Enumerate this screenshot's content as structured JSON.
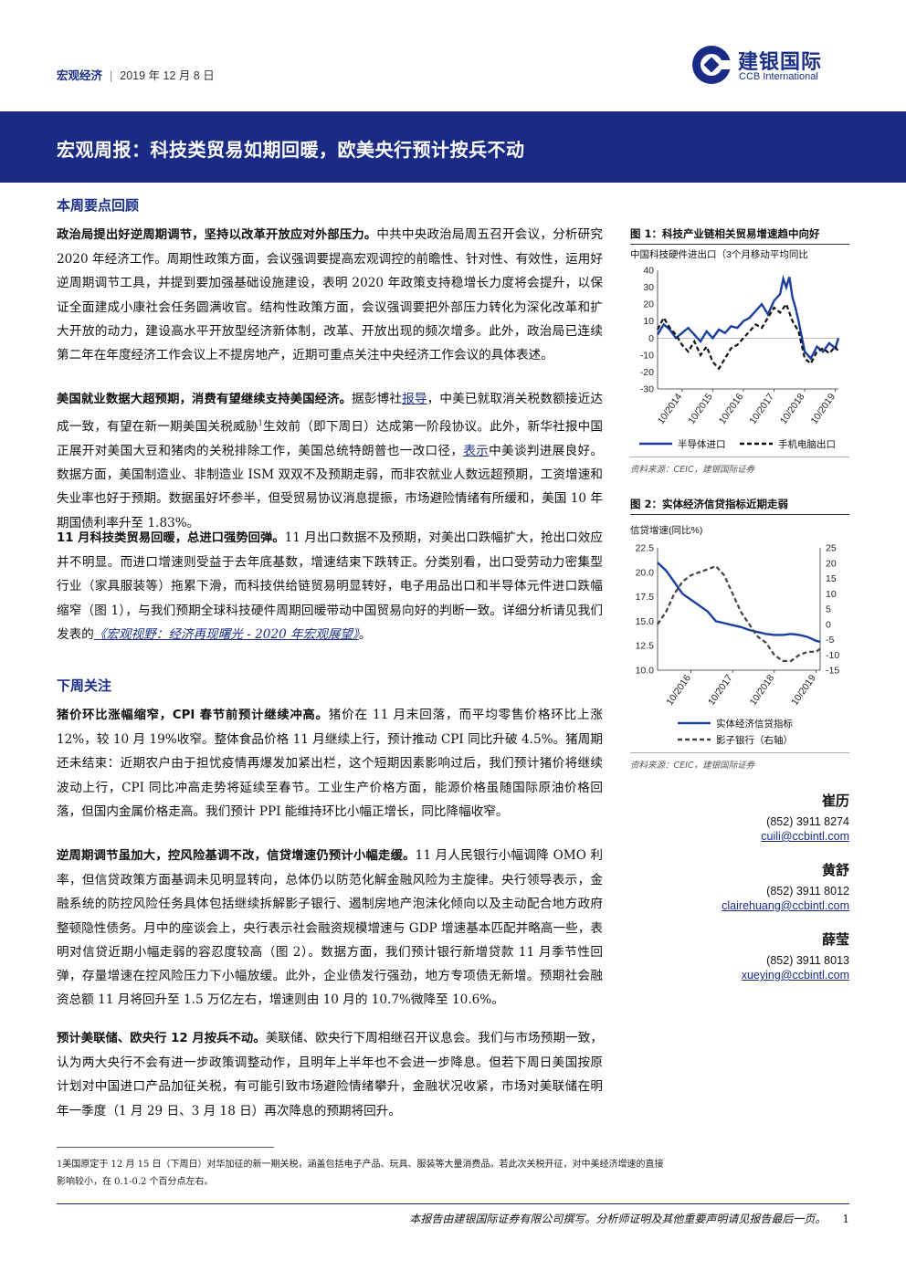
{
  "header": {
    "section": "宏观经济",
    "separator": "|",
    "date": "2019 年 12 月 8 日",
    "logo_cn": "建银国际",
    "logo_en": "CCB International",
    "brand_color": "#1a2b86"
  },
  "title": "宏观周报：科技类贸易如期回暖，欧美央行预计按兵不动",
  "sections": {
    "review_heading": "本周要点回顾",
    "next_heading": "下周关注"
  },
  "paragraphs": {
    "p1": {
      "lead": "政治局提出好逆周期调节，坚持以改革开放应对外部压力。",
      "text": "中共中央政治局周五召开会议，分析研究 2020 年经济工作。周期性政策方面，会议强调要提高宏观调控的前瞻性、针对性、有效性，运用好逆周期调节工具，并提到要加强基础设施建设，表明 2020 年政策支持稳增长力度将会提升，以保证全面建成小康社会任务圆满收官。结构性政策方面，会议强调要把外部压力转化为深化改革和扩大开放的动力，建设高水平开放型经济新体制，改革、开放出现的频次增多。此外，政治局已连续第二年在年度经济工作会议上不提房地产，近期可重点关注中央经济工作会议的具体表述。"
    },
    "p2": {
      "lead": "美国就业数据大超预期，消费有望继续支持美国经济。",
      "t1": "据彭博社",
      "link1": "报导",
      "t2": "，中美已就取消关税数额接近达成一致，",
      "t3": "有望在新一期美国关税威胁",
      "sup": "1",
      "t4": "生效前（即下周日）达成第一阶段协议。此外，新华社报中国正展开对美国大豆和猪肉的关税排除工作，美国总统特朗普也一改口径，",
      "link2": "表示",
      "t5": "中美谈判进展良好。数据方面，美国制造业、非制造业 ISM 双双不及预期走弱，而非农就业人数远超预期，工资增速和失业率也好于预期。数据虽好坏参半，但受贸易协议消息提振，市场避险情绪有所缓和，美国 10 年期国债利率升至 1.83%。"
    },
    "p3": {
      "lead": "11 月科技类贸易回暖，总进口强势回弹。",
      "t1": "11 月出口数据不及预期，对美出口跌幅扩大，抢出口效应并不明显。而进口增速则受益于去年底基数，增速结束下跌转正。分类别看，出口受劳动力密集型行业（家具服装等）拖累下滑，而科技供给链贸易明显转好，电子用品出口和半导体元件进口跌幅缩窄（图 1），与我们预期全球科技硬件周期回暖带动中国贸易向好的判断一致。详细分析请见我们发表的",
      "link": "《宏观视野：经济再现曙光 - 2020 年宏观展望》",
      "t2": "。"
    },
    "p4": {
      "lead": "猪价环比涨幅缩窄，CPI 春节前预计继续冲高。",
      "text": "猪价在 11 月末回落，而平均零售价格环比上涨 12%，较 10 月 19%收窄。整体食品价格 11 月继续上行，预计推动 CPI 同比升破 4.5%。猪周期还未结束：近期农户由于担忧疫情再爆发加紧出栏，这个短期因素影响过后，我们预计猪价将继续波动上行，CPI 同比冲高走势将延续至春节。工业生产价格方面，能源价格虽随国际原油价格回落，但国内金属价格走高。我们预计 PPI 能维持环比小幅正增长，同比降幅收窄。"
    },
    "p5": {
      "lead": "逆周期调节虽加大，控风险基调不改，信贷增速仍预计小幅走缓。",
      "text": "11 月人民银行小幅调降 OMO 利率，但信贷政策方面基调未见明显转向，总体仍以防范化解金融风险为主旋律。央行领导表示，金融系统的防控风险任务具体包括继续拆解影子银行、遏制房地产泡沫化倾向以及主动配合地方政府整顿隐性债务。月中的座谈会上，央行表示社会融资规模增速与 GDP 增速基本匹配并略高一些，表明对信贷近期小幅走弱的容忍度较高（图 2）。数据方面，我们预计银行新增贷款 11 月季节性回弹，存量增速在控风险压力下小幅放缓。此外，企业债发行强劲，地方专项债无新增。预期社会融资总额 11 月将回升至 1.5 万亿左右，增速则由 10 月的 10.7%微降至 10.6%。"
    },
    "p6": {
      "lead": "预计美联储、欧央行 12 月按兵不动。",
      "text": "美联储、欧央行下周相继召开议息会。我们与市场预期一致，认为两大央行不会有进一步政策调整动作，且明年上半年也不会进一步降息。但若下周日美国按原计划对中国进口产品加征关税，有可能引致市场避险情绪攀升，金融状况收紧，市场对美联储在明年一季度（1 月 29 日、3 月 18 日）再次降息的预期将回升。"
    }
  },
  "figures": {
    "fig1_caption": "图 1：科技产业链相关贸易增速趋中向好",
    "fig1_source": "资料来源：CEIC，建银国际证券",
    "fig2_caption": "图 2：实体经济信贷指标近期走弱",
    "fig2_source": "资料来源：CEIC，建银国际证券"
  },
  "chart_data": [
    {
      "type": "line",
      "title": "中国科技硬件进出口（3个月移动平均同比",
      "ylim": [
        -30,
        40
      ],
      "yticks": [
        40,
        30,
        20,
        10,
        0,
        -10,
        -20,
        -30
      ],
      "xticks": [
        "10/2014",
        "10/2015",
        "10/2016",
        "10/2017",
        "10/2018",
        "10/2019"
      ],
      "grid": false,
      "legend": "bottom",
      "series": [
        {
          "name": "半导体进口",
          "style": "solid",
          "color": "#1a3fa0",
          "x": [
            2014.0,
            2014.2,
            2014.4,
            2014.6,
            2014.8,
            2015.0,
            2015.2,
            2015.4,
            2015.6,
            2015.8,
            2016.0,
            2016.2,
            2016.4,
            2016.6,
            2016.8,
            2017.0,
            2017.2,
            2017.4,
            2017.6,
            2017.8,
            2018.0,
            2018.1,
            2018.2,
            2018.3,
            2018.4,
            2018.5,
            2018.6,
            2018.8,
            2019.0,
            2019.2,
            2019.4,
            2019.6,
            2019.8,
            2019.9
          ],
          "values": [
            2,
            8,
            5,
            0,
            3,
            6,
            2,
            -2,
            4,
            0,
            5,
            3,
            7,
            6,
            10,
            12,
            16,
            20,
            14,
            22,
            26,
            35,
            30,
            36,
            24,
            18,
            10,
            -8,
            -12,
            -5,
            -8,
            -3,
            -6,
            0
          ]
        },
        {
          "name": "手机电脑出口",
          "style": "dashed",
          "color": "#111111",
          "x": [
            2014.0,
            2014.2,
            2014.4,
            2014.6,
            2014.8,
            2015.0,
            2015.2,
            2015.4,
            2015.6,
            2015.8,
            2016.0,
            2016.2,
            2016.4,
            2016.6,
            2016.8,
            2017.0,
            2017.2,
            2017.4,
            2017.6,
            2017.8,
            2018.0,
            2018.2,
            2018.4,
            2018.6,
            2018.8,
            2019.0,
            2019.2,
            2019.4,
            2019.6,
            2019.8,
            2019.9
          ],
          "values": [
            5,
            12,
            6,
            2,
            -4,
            -8,
            -2,
            -10,
            -5,
            -14,
            -18,
            -12,
            -6,
            -4,
            0,
            4,
            8,
            6,
            12,
            18,
            15,
            20,
            10,
            4,
            -12,
            -15,
            -8,
            -6,
            -9,
            -5,
            -8
          ]
        }
      ]
    },
    {
      "type": "line",
      "ylabel": "信贷增速(同比%)",
      "ylim": [
        10.0,
        22.5
      ],
      "yticks": [
        22.5,
        20.0,
        17.5,
        15.0,
        12.5,
        10.0
      ],
      "y2lim": [
        -15,
        25
      ],
      "y2ticks": [
        25,
        20,
        15,
        10,
        5,
        0,
        -5,
        -10,
        -15
      ],
      "xticks": [
        "10/2016",
        "10/2017",
        "10/2018",
        "10/2019"
      ],
      "grid": false,
      "legend": "bottom",
      "series": [
        {
          "name": "实体经济信贷指标",
          "style": "solid",
          "color": "#1a3fa0",
          "axis": "left",
          "x": [
            2016.0,
            2016.2,
            2016.4,
            2016.6,
            2016.8,
            2017.0,
            2017.2,
            2017.4,
            2017.6,
            2017.8,
            2018.0,
            2018.2,
            2018.4,
            2018.6,
            2018.8,
            2019.0,
            2019.2,
            2019.4,
            2019.6,
            2019.8,
            2019.9
          ],
          "values": [
            21.0,
            20.2,
            19.0,
            17.8,
            17.2,
            16.6,
            16.0,
            15.0,
            14.8,
            14.6,
            14.4,
            14.1,
            13.9,
            13.7,
            13.6,
            13.6,
            13.7,
            13.6,
            13.4,
            13.0,
            12.9
          ]
        },
        {
          "name": "影子银行（右轴）",
          "style": "dashed",
          "color": "#444444",
          "axis": "right",
          "x": [
            2016.0,
            2016.2,
            2016.4,
            2016.6,
            2016.8,
            2017.0,
            2017.2,
            2017.4,
            2017.6,
            2017.8,
            2018.0,
            2018.2,
            2018.4,
            2018.6,
            2018.8,
            2019.0,
            2019.2,
            2019.4,
            2019.6,
            2019.8,
            2019.9
          ],
          "values": [
            0,
            4,
            10,
            14,
            16,
            17,
            18,
            19,
            16,
            10,
            4,
            0,
            -4,
            -6,
            -10,
            -12,
            -12,
            -10,
            -9,
            -9,
            -8
          ]
        }
      ]
    }
  ],
  "analysts": [
    {
      "name": "崔历",
      "tel": "(852) 3911 8274",
      "email": "cuili@ccbintl.com"
    },
    {
      "name": "黄舒",
      "tel": "(852) 3911 8012",
      "email": "clairehuang@ccbintl.com"
    },
    {
      "name": "薛莹",
      "tel": "(852) 3911 8013",
      "email": "xueying@ccbintl.com"
    }
  ],
  "footnote": "1美国原定于 12 月 15 日（下周日）对华加征的新一期关税，涵盖包括电子产品、玩具、服装等大量消费品。若此次关税开征，对中美经济增速的直接影响较小，在 0.1-0.2 个百分点左右。",
  "footer": {
    "disclaimer": "本报告由建银国际证券有限公司撰写。分析师证明及其他重要声明请见报告最后一页。",
    "page": "1"
  }
}
